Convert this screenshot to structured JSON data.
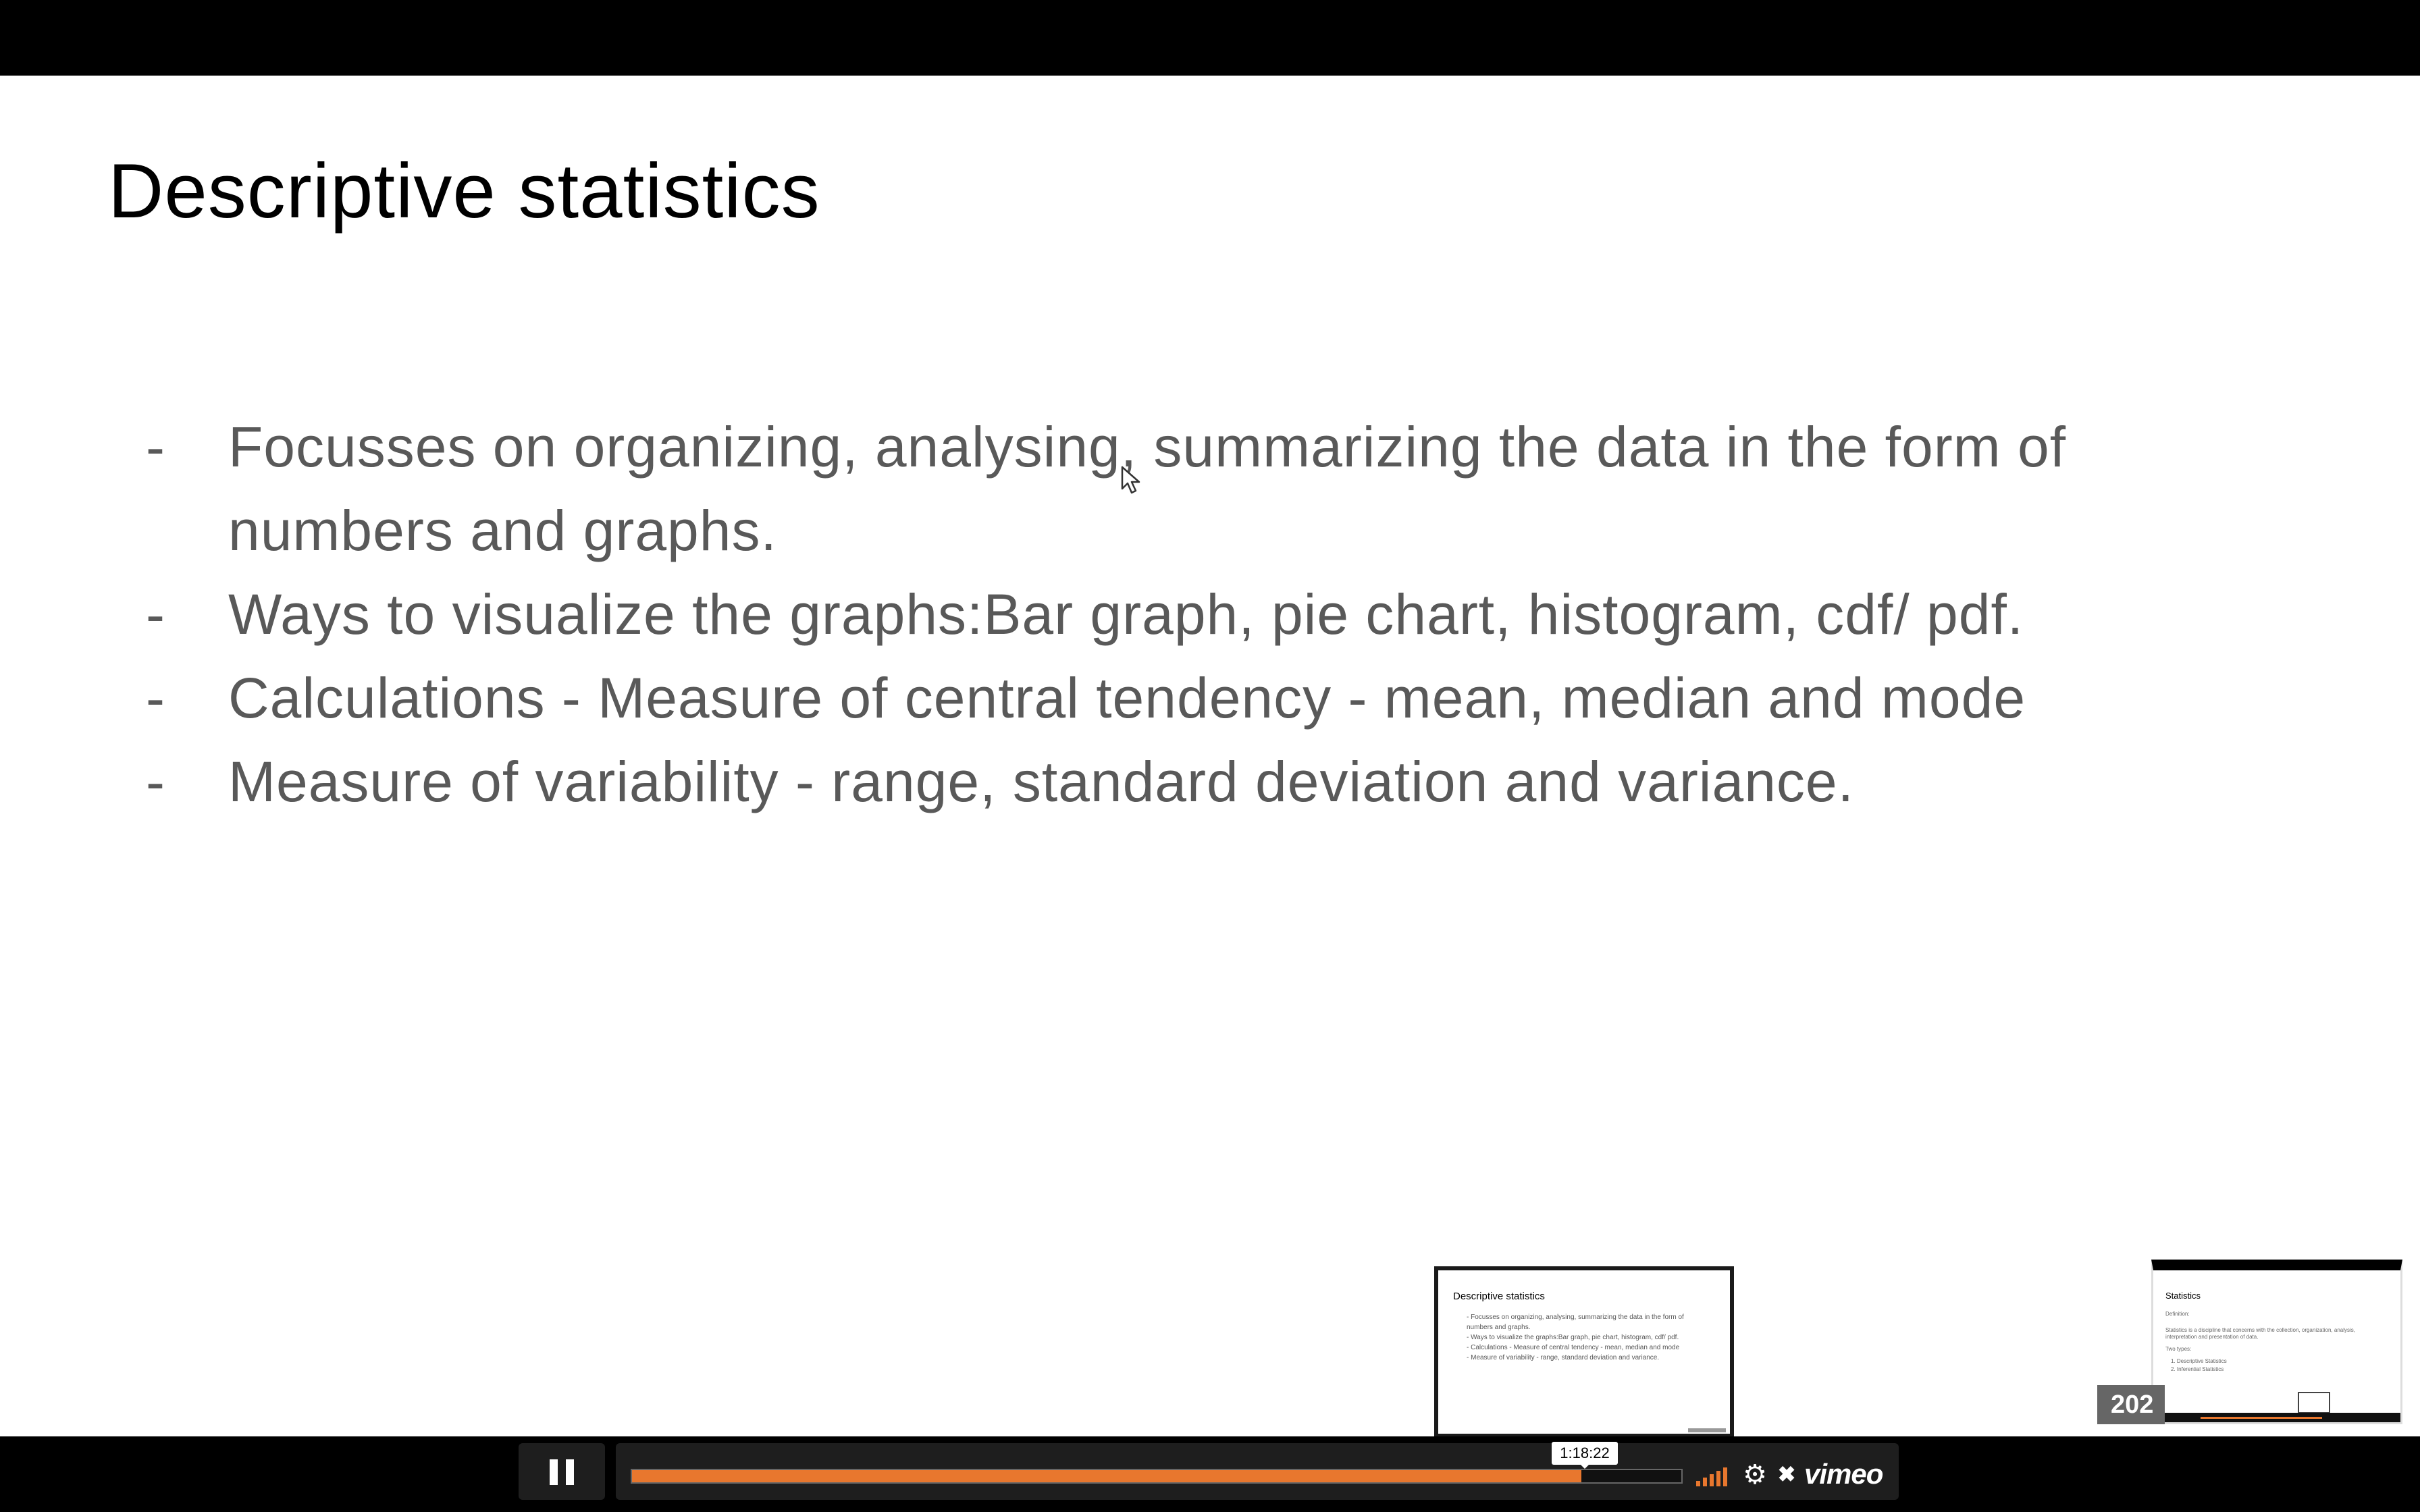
{
  "slide": {
    "title": "Descriptive statistics",
    "bullets": [
      {
        "dash": "-",
        "text": "Focusses on organizing, analysing, summarizing the data in the form of\nnumbers and graphs."
      },
      {
        "dash": "-",
        "text": "Ways to visualize the graphs:Bar graph, pie chart, histogram, cdf/ pdf."
      },
      {
        "dash": "-",
        "text": "Calculations - Measure of central tendency - mean, median and mode"
      },
      {
        "dash": "-",
        "text": "Measure of variability - range, standard deviation and variance."
      }
    ]
  },
  "thumbnail_current": {
    "title": "Descriptive statistics",
    "lines": [
      "-  Focusses on organizing, analysing, summarizing the data in the form of",
      "   numbers and graphs.",
      "-  Ways to visualize the graphs:Bar graph, pie chart, histogram, cdf/ pdf.",
      "-  Calculations - Measure of central tendency - mean, median and mode",
      "-  Measure of variability - range, standard deviation and variance."
    ]
  },
  "thumbnail_next": {
    "title": "Statistics",
    "definition_label": "Definition:",
    "definition_text": "Statistics is a discipline that concerns with the collection, organization, analysis,",
    "definition_text_2": "interpretation and presentation of data.",
    "types_label": "Two types:",
    "types": [
      "1.   Descriptive Statistics",
      "2.   Inferential Statistics"
    ]
  },
  "year_badge": "202",
  "player": {
    "tooltip_time": "1:18:22",
    "progress": 0.905,
    "volume_bars": 5,
    "brand": "vimeo",
    "accent_color": "#e8772e",
    "icons": [
      "pause-icon",
      "volume-icon",
      "settings-icon",
      "fullscreen-icon",
      "vimeo-logo"
    ]
  }
}
